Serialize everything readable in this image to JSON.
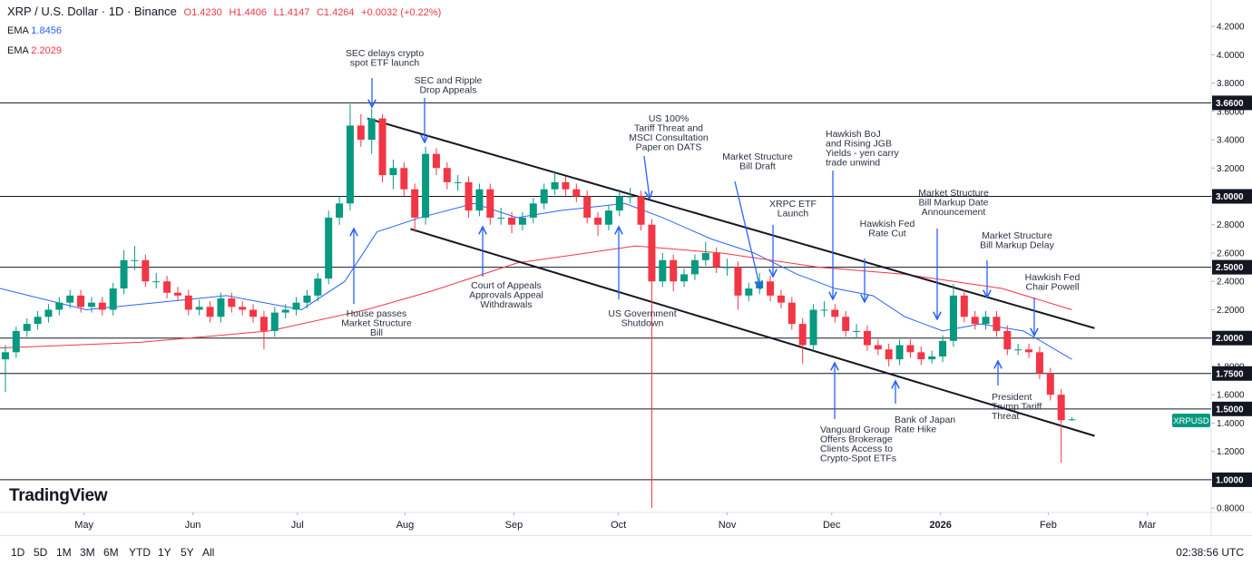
{
  "chart_data": {
    "type": "candlestick",
    "header": {
      "title": "XRP / U.S. Dollar · 1D · Binance",
      "open": "O1.4230",
      "high": "H1.4406",
      "low": "L1.4147",
      "close": "C1.4264",
      "change": "+0.0032 (+0.22%)"
    },
    "up_color": "#089981",
    "down_color": "#f23645",
    "xlim": [
      0,
      112
    ],
    "xticks": [
      {
        "value": 7.8,
        "label": "May"
      },
      {
        "value": 17.9,
        "label": "Jun"
      },
      {
        "value": 27.6,
        "label": "Jul"
      },
      {
        "value": 37.6,
        "label": "Aug"
      },
      {
        "value": 47.7,
        "label": "Sep"
      },
      {
        "value": 57.4,
        "label": "Oct"
      },
      {
        "value": 67.5,
        "label": "Nov"
      },
      {
        "value": 77.2,
        "label": "Dec"
      },
      {
        "value": 87.3,
        "label": "2026"
      },
      {
        "value": 97.3,
        "label": "Feb"
      },
      {
        "value": 106.5,
        "label": "Mar"
      }
    ],
    "ylim": [
      0.769,
      4.386
    ],
    "yticks": [
      {
        "value": 0.8,
        "label": "0.8000"
      },
      {
        "value": 1.0,
        "label": "1.0000"
      },
      {
        "value": 1.2,
        "label": "1.2000"
      },
      {
        "value": 1.4,
        "label": "1.4000"
      },
      {
        "value": 1.6,
        "label": "1.6000"
      },
      {
        "value": 1.8,
        "label": "1.8000"
      },
      {
        "value": 2.0,
        "label": "2.0000"
      },
      {
        "value": 2.2,
        "label": "2.2000"
      },
      {
        "value": 2.4,
        "label": "2.4000"
      },
      {
        "value": 2.6,
        "label": "2.6000"
      },
      {
        "value": 2.8,
        "label": "2.8000"
      },
      {
        "value": 3.0,
        "label": "3.0000"
      },
      {
        "value": 3.2,
        "label": "3.2000"
      },
      {
        "value": 3.4,
        "label": "3.4000"
      },
      {
        "value": 3.6,
        "label": "3.6000"
      },
      {
        "value": 3.8,
        "label": "3.8000"
      },
      {
        "value": 4.0,
        "label": "4.0000"
      },
      {
        "value": 4.2,
        "label": "4.2000"
      }
    ],
    "levels": [
      {
        "value": 3.66,
        "label": "3.6600"
      },
      {
        "value": 3.0,
        "label": "3.0000"
      },
      {
        "value": 2.5,
        "label": "2.5000"
      },
      {
        "value": 2.0,
        "label": "2.0000"
      },
      {
        "value": 1.75,
        "label": "1.7500"
      },
      {
        "value": 1.5,
        "label": "1.5000"
      },
      {
        "value": 1.0,
        "label": "1.0000"
      }
    ],
    "symbol_tag": "XRPUSD",
    "candles": [
      [
        1.85,
        1.95,
        1.62,
        1.9
      ],
      [
        1.9,
        2.08,
        1.86,
        2.05
      ],
      [
        2.05,
        2.14,
        2.01,
        2.1
      ],
      [
        2.1,
        2.19,
        2.06,
        2.15
      ],
      [
        2.15,
        2.24,
        2.11,
        2.2
      ],
      [
        2.2,
        2.29,
        2.16,
        2.25
      ],
      [
        2.25,
        2.34,
        2.21,
        2.3
      ],
      [
        2.3,
        2.34,
        2.18,
        2.22
      ],
      [
        2.22,
        2.29,
        2.18,
        2.25
      ],
      [
        2.25,
        2.29,
        2.16,
        2.2
      ],
      [
        2.2,
        2.39,
        2.16,
        2.35
      ],
      [
        2.35,
        2.62,
        2.31,
        2.55
      ],
      [
        2.55,
        2.65,
        2.48,
        2.55
      ],
      [
        2.55,
        2.59,
        2.36,
        2.4
      ],
      [
        2.4,
        2.46,
        2.35,
        2.4
      ],
      [
        2.4,
        2.44,
        2.28,
        2.32
      ],
      [
        2.32,
        2.36,
        2.26,
        2.3
      ],
      [
        2.3,
        2.34,
        2.16,
        2.2
      ],
      [
        2.2,
        2.27,
        2.16,
        2.22
      ],
      [
        2.22,
        2.26,
        2.11,
        2.15
      ],
      [
        2.15,
        2.32,
        2.11,
        2.28
      ],
      [
        2.28,
        2.32,
        2.18,
        2.22
      ],
      [
        2.22,
        2.26,
        2.16,
        2.2
      ],
      [
        2.2,
        2.24,
        2.11,
        2.15
      ],
      [
        2.15,
        2.19,
        1.92,
        2.05
      ],
      [
        2.05,
        2.22,
        2.01,
        2.18
      ],
      [
        2.18,
        2.24,
        2.14,
        2.2
      ],
      [
        2.2,
        2.29,
        2.16,
        2.25
      ],
      [
        2.25,
        2.34,
        2.21,
        2.3
      ],
      [
        2.3,
        2.46,
        2.26,
        2.42
      ],
      [
        2.42,
        2.9,
        2.38,
        2.85
      ],
      [
        2.85,
        3.0,
        2.8,
        2.95
      ],
      [
        2.95,
        3.65,
        2.9,
        3.5
      ],
      [
        3.5,
        3.58,
        3.35,
        3.4
      ],
      [
        3.4,
        3.62,
        3.3,
        3.55
      ],
      [
        3.55,
        3.58,
        3.1,
        3.15
      ],
      [
        3.15,
        3.26,
        3.05,
        3.2
      ],
      [
        3.2,
        3.24,
        3.0,
        3.05
      ],
      [
        3.05,
        3.09,
        2.75,
        2.85
      ],
      [
        2.85,
        3.35,
        2.8,
        3.3
      ],
      [
        3.3,
        3.34,
        3.15,
        3.2
      ],
      [
        3.2,
        3.24,
        3.05,
        3.1
      ],
      [
        3.1,
        3.15,
        3.04,
        3.1
      ],
      [
        3.1,
        3.14,
        2.85,
        2.9
      ],
      [
        2.9,
        3.09,
        2.86,
        3.05
      ],
      [
        3.05,
        3.09,
        2.8,
        2.85
      ],
      [
        2.85,
        2.92,
        2.8,
        2.85
      ],
      [
        2.85,
        2.89,
        2.74,
        2.8
      ],
      [
        2.8,
        2.89,
        2.76,
        2.85
      ],
      [
        2.85,
        2.99,
        2.81,
        2.95
      ],
      [
        2.95,
        3.09,
        2.91,
        3.05
      ],
      [
        3.05,
        3.18,
        3.01,
        3.1
      ],
      [
        3.1,
        3.14,
        3.0,
        3.05
      ],
      [
        3.05,
        3.09,
        2.96,
        3.0
      ],
      [
        3.0,
        3.04,
        2.81,
        2.85
      ],
      [
        2.85,
        2.89,
        2.72,
        2.8
      ],
      [
        2.8,
        2.94,
        2.76,
        2.9
      ],
      [
        2.9,
        3.05,
        2.86,
        3.0
      ],
      [
        3.0,
        3.06,
        2.95,
        3.0
      ],
      [
        3.0,
        3.04,
        2.76,
        2.8
      ],
      [
        2.8,
        2.84,
        0.8,
        2.4
      ],
      [
        2.4,
        2.6,
        2.36,
        2.55
      ],
      [
        2.55,
        2.59,
        2.33,
        2.4
      ],
      [
        2.4,
        2.49,
        2.36,
        2.45
      ],
      [
        2.45,
        2.59,
        2.41,
        2.55
      ],
      [
        2.55,
        2.68,
        2.51,
        2.6
      ],
      [
        2.6,
        2.64,
        2.46,
        2.5
      ],
      [
        2.5,
        2.56,
        2.44,
        2.5
      ],
      [
        2.5,
        2.54,
        2.2,
        2.3
      ],
      [
        2.3,
        2.39,
        2.26,
        2.35
      ],
      [
        2.35,
        2.46,
        2.31,
        2.4
      ],
      [
        2.4,
        2.44,
        2.26,
        2.3
      ],
      [
        2.3,
        2.34,
        2.21,
        2.25
      ],
      [
        2.25,
        2.29,
        2.06,
        2.1
      ],
      [
        2.1,
        2.14,
        1.82,
        1.95
      ],
      [
        1.95,
        2.24,
        1.91,
        2.2
      ],
      [
        2.2,
        2.26,
        2.15,
        2.2
      ],
      [
        2.2,
        2.24,
        2.11,
        2.15
      ],
      [
        2.15,
        2.19,
        2.01,
        2.05
      ],
      [
        2.05,
        2.1,
        2.0,
        2.05
      ],
      [
        2.05,
        2.09,
        1.91,
        1.95
      ],
      [
        1.95,
        1.99,
        1.88,
        1.92
      ],
      [
        1.92,
        1.96,
        1.8,
        1.85
      ],
      [
        1.85,
        1.99,
        1.81,
        1.95
      ],
      [
        1.95,
        1.99,
        1.86,
        1.9
      ],
      [
        1.9,
        1.94,
        1.81,
        1.85
      ],
      [
        1.85,
        1.91,
        1.82,
        1.87
      ],
      [
        1.87,
        2.02,
        1.83,
        1.98
      ],
      [
        1.98,
        2.38,
        1.94,
        2.3
      ],
      [
        2.3,
        2.34,
        2.11,
        2.15
      ],
      [
        2.15,
        2.19,
        2.06,
        2.1
      ],
      [
        2.1,
        2.19,
        2.06,
        2.15
      ],
      [
        2.15,
        2.19,
        2.01,
        2.05
      ],
      [
        2.05,
        2.09,
        1.88,
        1.92
      ],
      [
        1.92,
        1.96,
        1.88,
        1.92
      ],
      [
        1.92,
        1.96,
        1.86,
        1.9
      ],
      [
        1.9,
        1.94,
        1.71,
        1.75
      ],
      [
        1.75,
        1.79,
        1.56,
        1.6
      ],
      [
        1.6,
        1.64,
        1.12,
        1.42
      ],
      [
        1.423,
        1.4406,
        1.4147,
        1.4264
      ]
    ],
    "series": [
      {
        "name": "EMA",
        "label": "1.8456",
        "color": "#2962ff",
        "x": [
          0,
          8,
          21,
          28,
          32,
          35,
          39,
          44,
          48,
          52,
          58,
          61.5,
          66,
          70,
          74,
          77.5,
          81,
          84,
          87.5,
          91,
          95,
          99.5
        ],
        "values": [
          2.35,
          2.2,
          2.3,
          2.2,
          2.4,
          2.75,
          2.85,
          2.95,
          2.85,
          2.9,
          2.95,
          2.85,
          2.7,
          2.6,
          2.45,
          2.35,
          2.3,
          2.15,
          2.05,
          2.1,
          2.05,
          1.85
        ]
      },
      {
        "name": "EMA",
        "label": "2.2029",
        "color": "#f23645",
        "x": [
          0,
          13,
          25,
          34,
          40,
          48,
          59,
          67,
          76,
          84,
          93,
          99.5
        ],
        "values": [
          1.93,
          1.97,
          2.05,
          2.2,
          2.33,
          2.53,
          2.65,
          2.6,
          2.5,
          2.45,
          2.35,
          2.2
        ]
      }
    ],
    "channel": [
      {
        "x": [
          34.1,
          101.6
        ],
        "values": [
          3.55,
          2.07
        ]
      },
      {
        "x": [
          38.1,
          101.6
        ],
        "values": [
          2.77,
          1.31
        ]
      }
    ],
    "annotations": [
      {
        "lines": [
          "SEC delays crypto",
          "spot ETF launch"
        ]
      },
      {
        "lines": [
          "SEC and Ripple",
          "Drop Appeals"
        ]
      },
      {
        "lines": [
          "US 100%",
          "Tariff Threat and",
          "MSCI Consultation",
          "Paper on DATS"
        ]
      },
      {
        "lines": [
          "Market Structure",
          "Bill Draft"
        ]
      },
      {
        "lines": [
          "Hawkish BoJ",
          "and Rising JGB",
          "Yields - yen carry",
          "trade unwind"
        ]
      },
      {
        "lines": [
          "XRPC ETF",
          "Launch"
        ]
      },
      {
        "lines": [
          "Market Structure",
          "Bill Markup Date",
          "Announcement"
        ]
      },
      {
        "lines": [
          "Hawkish Fed",
          "Rate Cut"
        ]
      },
      {
        "lines": [
          "Market Structure",
          "Bill Markup Delay"
        ]
      },
      {
        "lines": [
          "Hawkish Fed",
          "Chair Powell"
        ]
      },
      {
        "lines": [
          "House passes",
          "Market Structure",
          "Bill"
        ]
      },
      {
        "lines": [
          "Court of Appeals",
          "Approvals Appeal",
          "Withdrawals"
        ]
      },
      {
        "lines": [
          "US Government",
          "Shutdown"
        ]
      },
      {
        "lines": [
          "Vanguard Group",
          "Offers Brokerage",
          "Clients Access to",
          "Crypto-Spot ETFs"
        ]
      },
      {
        "lines": [
          "Bank of Japan",
          "Rate Hike"
        ]
      },
      {
        "lines": [
          "President",
          "Trump Tariff",
          "Threat"
        ]
      }
    ],
    "logo": "TradingView",
    "ranges": [
      "1D",
      "5D",
      "1M",
      "3M",
      "6M",
      "YTD",
      "1Y",
      "5Y",
      "All"
    ],
    "clock": "02:38:56 UTC"
  }
}
